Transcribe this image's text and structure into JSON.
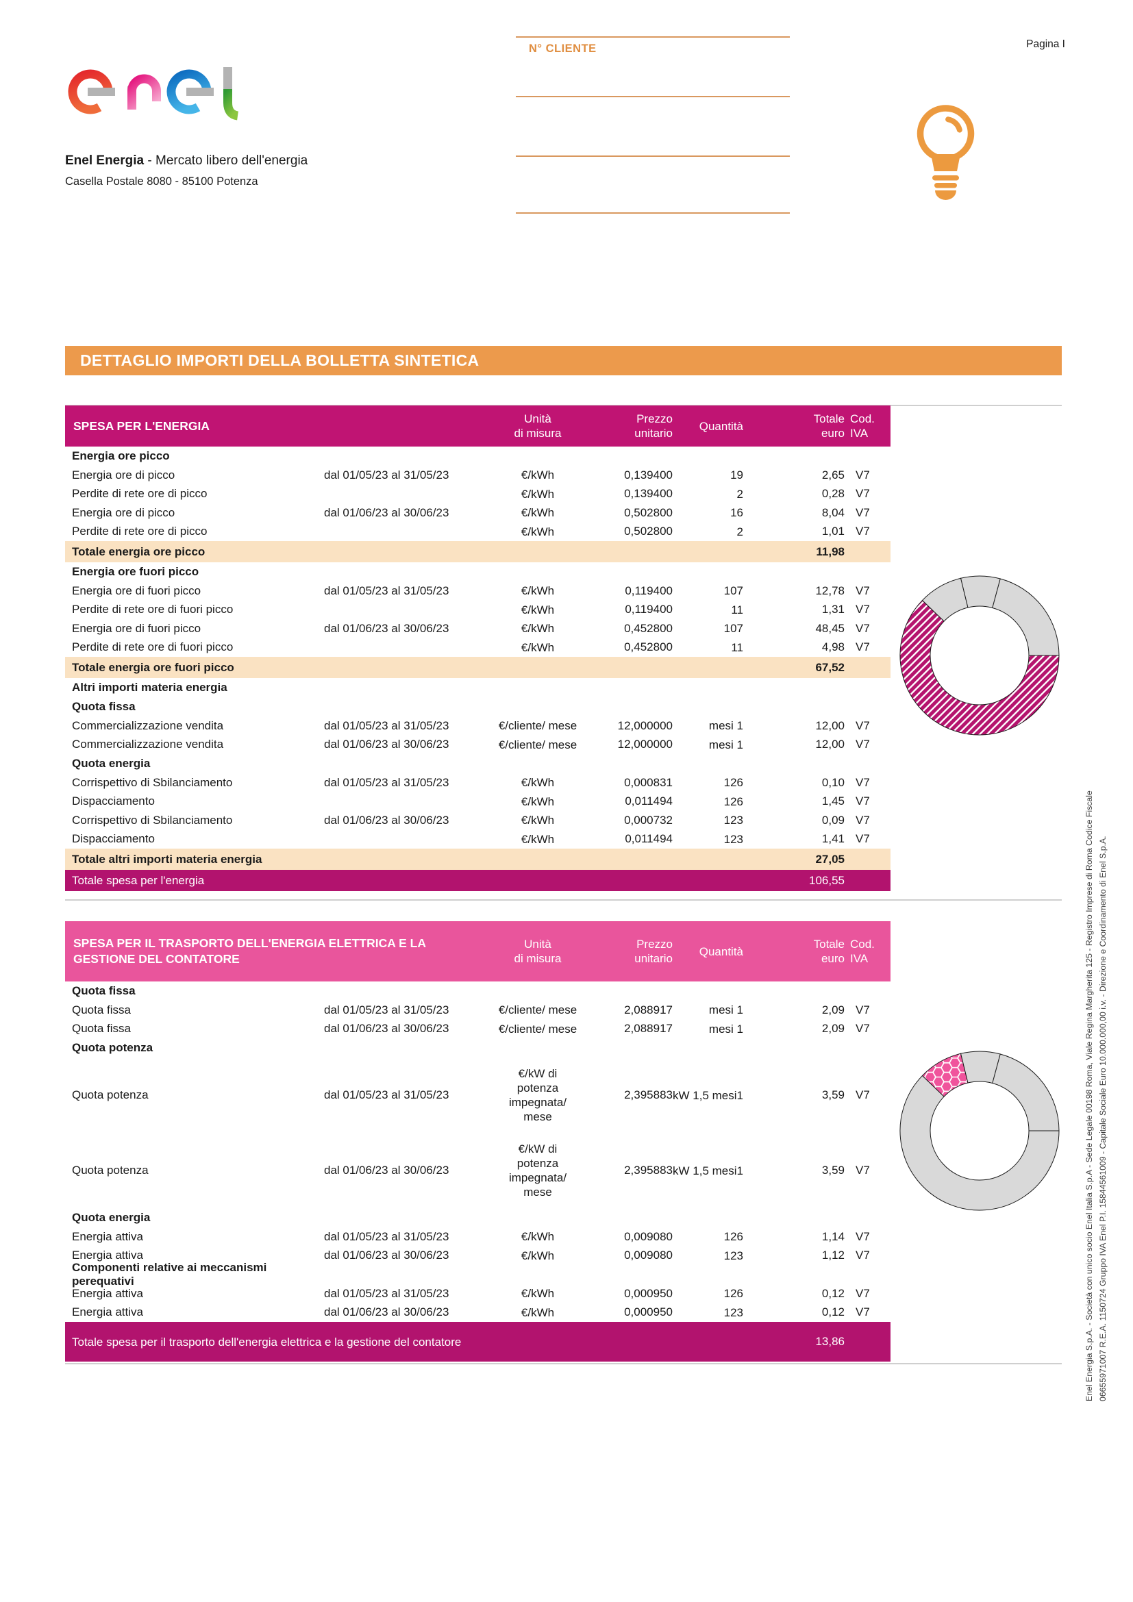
{
  "page": {
    "pagina": "Pagina I"
  },
  "header": {
    "logo_word": "enel",
    "company_bold": "Enel Energia",
    "company_tail": " - Mercato libero dell'energia",
    "address": "Casella Postale 8080 - 85100 Potenza",
    "cliente_label": "N° CLIENTE"
  },
  "banner": {
    "title": "DETTAGLIO IMPORTI DELLA BOLLETTA SINTETICA"
  },
  "col_headers": {
    "unita_1": "Unità",
    "unita_2": "di misura",
    "prezzo_1": "Prezzo",
    "prezzo_2": "unitario",
    "quantita": "Quantità",
    "totale_1": "Totale",
    "totale_2": "euro",
    "iva_1": "Cod.",
    "iva_2": "IVA"
  },
  "table1": {
    "title": "SPESA PER L'ENERGIA",
    "rows": [
      {
        "t": "section",
        "desc": "Energia ore picco"
      },
      {
        "t": "item",
        "desc": "Energia ore di picco",
        "period": "dal 01/05/23 al 31/05/23",
        "unit": "€/kWh",
        "price": "0,139400",
        "qty": "19",
        "total": "2,65",
        "iva": "V7"
      },
      {
        "t": "item",
        "desc": "Perdite di rete ore di picco",
        "period": "",
        "unit": "€/kWh",
        "price": "0,139400",
        "qty": "2",
        "total": "0,28",
        "iva": "V7"
      },
      {
        "t": "item",
        "desc": "Energia ore di picco",
        "period": "dal 01/06/23 al 30/06/23",
        "unit": "€/kWh",
        "price": "0,502800",
        "qty": "16",
        "total": "8,04",
        "iva": "V7"
      },
      {
        "t": "item",
        "desc": "Perdite di rete ore di picco",
        "period": "",
        "unit": "€/kWh",
        "price": "0,502800",
        "qty": "2",
        "total": "1,01",
        "iva": "V7"
      },
      {
        "t": "subtotal",
        "desc": "Totale energia ore picco",
        "total": "11,98"
      },
      {
        "t": "section",
        "desc": "Energia ore fuori picco"
      },
      {
        "t": "item",
        "desc": "Energia ore di fuori picco",
        "period": "dal 01/05/23 al 31/05/23",
        "unit": "€/kWh",
        "price": "0,119400",
        "qty": "107",
        "total": "12,78",
        "iva": "V7"
      },
      {
        "t": "item",
        "desc": "Perdite di rete ore di fuori picco",
        "period": "",
        "unit": "€/kWh",
        "price": "0,119400",
        "qty": "11",
        "total": "1,31",
        "iva": "V7"
      },
      {
        "t": "item",
        "desc": "Energia ore di fuori picco",
        "period": "dal 01/06/23 al 30/06/23",
        "unit": "€/kWh",
        "price": "0,452800",
        "qty": "107",
        "total": "48,45",
        "iva": "V7"
      },
      {
        "t": "item",
        "desc": "Perdite di rete ore di fuori picco",
        "period": "",
        "unit": "€/kWh",
        "price": "0,452800",
        "qty": "11",
        "total": "4,98",
        "iva": "V7"
      },
      {
        "t": "subtotal",
        "desc": "Totale energia ore fuori picco",
        "total": "67,52"
      },
      {
        "t": "section",
        "desc": "Altri importi materia energia"
      },
      {
        "t": "section",
        "desc": "Quota fissa"
      },
      {
        "t": "item",
        "desc": "Commercializzazione vendita",
        "period": "dal 01/05/23 al 31/05/23",
        "unit": "€/cliente/ mese",
        "price": "12,000000",
        "qty": "mesi 1",
        "total": "12,00",
        "iva": "V7"
      },
      {
        "t": "item",
        "desc": "Commercializzazione vendita",
        "period": "dal 01/06/23 al 30/06/23",
        "unit": "€/cliente/ mese",
        "price": "12,000000",
        "qty": "mesi 1",
        "total": "12,00",
        "iva": "V7"
      },
      {
        "t": "section",
        "desc": "Quota energia"
      },
      {
        "t": "item",
        "desc": "Corrispettivo di Sbilanciamento",
        "period": "dal 01/05/23 al 31/05/23",
        "unit": "€/kWh",
        "price": "0,000831",
        "qty": "126",
        "total": "0,10",
        "iva": "V7"
      },
      {
        "t": "item",
        "desc": "Dispacciamento",
        "period": "",
        "unit": "€/kWh",
        "price": "0,011494",
        "qty": "126",
        "total": "1,45",
        "iva": "V7"
      },
      {
        "t": "item",
        "desc": "Corrispettivo di Sbilanciamento",
        "period": "dal 01/06/23 al 30/06/23",
        "unit": "€/kWh",
        "price": "0,000732",
        "qty": "123",
        "total": "0,09",
        "iva": "V7"
      },
      {
        "t": "item",
        "desc": "Dispacciamento",
        "period": "",
        "unit": "€/kWh",
        "price": "0,011494",
        "qty": "123",
        "total": "1,41",
        "iva": "V7"
      },
      {
        "t": "subtotal",
        "desc": "Totale altri importi materia energia",
        "total": "27,05"
      },
      {
        "t": "grand",
        "desc": "Totale spesa per l'energia",
        "total": "106,55"
      }
    ]
  },
  "table2": {
    "title": "SPESA PER IL TRASPORTO DELL'ENERGIA ELETTRICA E LA GESTIONE DEL CONTATORE",
    "rows": [
      {
        "t": "section",
        "desc": "Quota fissa"
      },
      {
        "t": "item",
        "desc": "Quota fissa",
        "period": "dal 01/05/23 al 31/05/23",
        "unit": "€/cliente/ mese",
        "price": "2,088917",
        "qty": "mesi 1",
        "total": "2,09",
        "iva": "V7"
      },
      {
        "t": "item",
        "desc": "Quota fissa",
        "period": "dal 01/06/23 al 30/06/23",
        "unit": "€/cliente/ mese",
        "price": "2,088917",
        "qty": "mesi 1",
        "total": "2,09",
        "iva": "V7"
      },
      {
        "t": "section",
        "desc": "Quota potenza"
      },
      {
        "t": "item",
        "tall": true,
        "desc": "Quota potenza",
        "period": "dal 01/05/23 al 31/05/23",
        "unit": "€/kW di potenza impegnata/ mese",
        "price": "2,395883",
        "qty": "kW 1,5 mesi1",
        "total": "3,59",
        "iva": "V7"
      },
      {
        "t": "item",
        "tall": true,
        "desc": "Quota potenza",
        "period": "dal 01/06/23 al 30/06/23",
        "unit": "€/kW di potenza impegnata/ mese",
        "price": "2,395883",
        "qty": "kW 1,5 mesi1",
        "total": "3,59",
        "iva": "V7"
      },
      {
        "t": "section",
        "desc": "Quota energia"
      },
      {
        "t": "item",
        "desc": "Energia attiva",
        "period": "dal 01/05/23 al 31/05/23",
        "unit": "€/kWh",
        "price": "0,009080",
        "qty": "126",
        "total": "1,14",
        "iva": "V7"
      },
      {
        "t": "item",
        "desc": "Energia attiva",
        "period": "dal 01/06/23 al 30/06/23",
        "unit": "€/kWh",
        "price": "0,009080",
        "qty": "123",
        "total": "1,12",
        "iva": "V7"
      },
      {
        "t": "section",
        "desc": "Componenti relative ai meccanismi perequativi"
      },
      {
        "t": "item",
        "desc": "Energia attiva",
        "period": "dal 01/05/23 al 31/05/23",
        "unit": "€/kWh",
        "price": "0,000950",
        "qty": "126",
        "total": "0,12",
        "iva": "V7"
      },
      {
        "t": "item",
        "desc": "Energia attiva",
        "period": "dal 01/06/23 al 30/06/23",
        "unit": "€/kWh",
        "price": "0,000950",
        "qty": "123",
        "total": "0,12",
        "iva": "V7"
      },
      {
        "t": "grand",
        "wrap": true,
        "desc": "Totale spesa per il trasporto dell'energia elettrica e la gestione del contatore",
        "total": "13,86"
      }
    ]
  },
  "chart_data": [
    {
      "type": "donut",
      "start_angle_deg_from_north_clockwise": 90,
      "outer_radius": 116,
      "inner_radius": 72,
      "segments": [
        {
          "percent": 62.2,
          "style": "hatched-magenta",
          "highlighted": true
        },
        {
          "percent": 9.0,
          "style": "gray",
          "highlighted": false
        },
        {
          "percent": 8.0,
          "style": "gray",
          "highlighted": false
        },
        {
          "percent": 20.8,
          "style": "gray",
          "highlighted": false
        }
      ]
    },
    {
      "type": "donut",
      "start_angle_deg_from_north_clockwise": 90,
      "outer_radius": 116,
      "inner_radius": 72,
      "segments": [
        {
          "percent": 62.2,
          "style": "gray",
          "highlighted": false
        },
        {
          "percent": 9.0,
          "style": "hatched-pink-hex",
          "highlighted": true
        },
        {
          "percent": 8.0,
          "style": "gray",
          "highlighted": false
        },
        {
          "percent": 20.8,
          "style": "gray",
          "highlighted": false
        }
      ]
    }
  ],
  "footer_vertical": {
    "line1": "Enel Energia S.p.A. - Società con unico socio Enel Italia S.p.A - Sede Legale 00198 Roma, Viale Regina Margherita 125 - Registro Imprese di Roma Codice Fiscale",
    "line2": "06655971007 R.E.A. 1150724 Gruppo IVA Enel P.I. 15844561009 - Capitale Sociale Euro 10.000.000,00 i.v. - Direzione e Coordinamento di Enel S.p.A."
  },
  "colors": {
    "banner_orange": "#ec9a4c",
    "accent_orange": "#e08e41",
    "table1_header_magenta": "#c01473",
    "table1_total_magenta": "#b2136e",
    "subtotal_peach": "#fae2c2",
    "table2_header_pink": "#e9559c",
    "chart_gray": "#d9d9d9",
    "hatch_magenta": "#b5146e",
    "hatch_pink": "#f0549c"
  }
}
